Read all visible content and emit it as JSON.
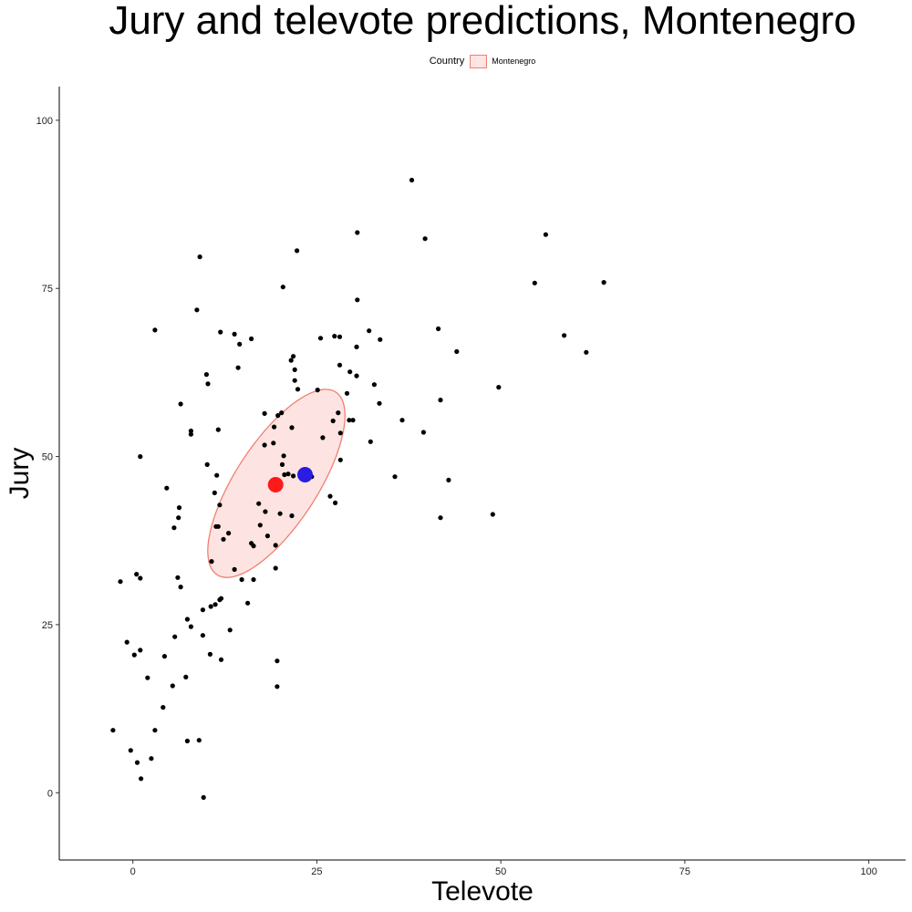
{
  "chart_data": {
    "type": "scatter",
    "title": "Jury and televote predictions, Montenegro",
    "xlabel": "Televote",
    "ylabel": "Jury",
    "xlim": [
      -10,
      105
    ],
    "ylim": [
      -10,
      105
    ],
    "xticks": [
      0,
      25,
      50,
      75,
      100
    ],
    "yticks": [
      0,
      25,
      50,
      75,
      100
    ],
    "grid": false,
    "legend": {
      "title": "Country",
      "position": "top",
      "entries": [
        "Montenegro"
      ]
    },
    "colors": {
      "points": "#000000",
      "ellipse_fill": "#fde4e2",
      "ellipse_stroke": "#f08070",
      "red_marker": "#ff1a1a",
      "blue_marker": "#2a1ce0"
    },
    "points": [
      [
        37.9,
        91.1
      ],
      [
        56.1,
        83.0
      ],
      [
        30.5,
        83.3
      ],
      [
        39.7,
        82.4
      ],
      [
        22.3,
        80.6
      ],
      [
        9.1,
        79.7
      ],
      [
        64.0,
        75.9
      ],
      [
        54.6,
        75.8
      ],
      [
        20.4,
        75.2
      ],
      [
        8.7,
        71.8
      ],
      [
        30.5,
        73.3
      ],
      [
        58.6,
        68.0
      ],
      [
        61.6,
        65.5
      ],
      [
        44.0,
        65.6
      ],
      [
        41.5,
        69.0
      ],
      [
        33.6,
        67.4
      ],
      [
        32.1,
        68.7
      ],
      [
        27.4,
        67.9
      ],
      [
        28.1,
        67.8
      ],
      [
        30.4,
        66.3
      ],
      [
        25.5,
        67.6
      ],
      [
        3.0,
        68.8
      ],
      [
        11.9,
        68.5
      ],
      [
        13.8,
        68.2
      ],
      [
        16.1,
        67.5
      ],
      [
        14.5,
        66.7
      ],
      [
        21.8,
        64.9
      ],
      [
        21.5,
        64.3
      ],
      [
        28.1,
        63.6
      ],
      [
        29.5,
        62.6
      ],
      [
        14.3,
        63.2
      ],
      [
        22.0,
        62.9
      ],
      [
        10.0,
        62.2
      ],
      [
        30.4,
        62.0
      ],
      [
        22.0,
        61.3
      ],
      [
        32.8,
        60.7
      ],
      [
        10.2,
        60.8
      ],
      [
        22.4,
        60.0
      ],
      [
        25.1,
        59.9
      ],
      [
        29.1,
        59.4
      ],
      [
        49.7,
        60.3
      ],
      [
        41.8,
        58.4
      ],
      [
        6.5,
        57.8
      ],
      [
        33.5,
        57.9
      ],
      [
        20.2,
        56.5
      ],
      [
        19.7,
        56.1
      ],
      [
        27.9,
        56.5
      ],
      [
        17.9,
        56.4
      ],
      [
        29.4,
        55.4
      ],
      [
        29.9,
        55.4
      ],
      [
        36.6,
        55.4
      ],
      [
        27.2,
        55.3
      ],
      [
        19.2,
        54.4
      ],
      [
        21.6,
        54.3
      ],
      [
        11.6,
        54.0
      ],
      [
        7.9,
        53.8
      ],
      [
        7.9,
        53.3
      ],
      [
        39.5,
        53.6
      ],
      [
        28.2,
        53.5
      ],
      [
        17.9,
        51.7
      ],
      [
        19.1,
        52.0
      ],
      [
        25.8,
        52.8
      ],
      [
        32.3,
        52.2
      ],
      [
        20.5,
        50.1
      ],
      [
        20.3,
        48.8
      ],
      [
        28.2,
        49.5
      ],
      [
        24.3,
        47.0
      ],
      [
        20.6,
        47.3
      ],
      [
        10.1,
        48.8
      ],
      [
        11.4,
        47.2
      ],
      [
        35.6,
        47.0
      ],
      [
        42.9,
        46.5
      ],
      [
        21.1,
        47.4
      ],
      [
        21.8,
        47.1
      ],
      [
        1.0,
        50.0
      ],
      [
        4.6,
        45.3
      ],
      [
        11.1,
        44.6
      ],
      [
        26.8,
        44.1
      ],
      [
        27.5,
        43.1
      ],
      [
        17.1,
        43.0
      ],
      [
        6.3,
        42.4
      ],
      [
        18.0,
        41.8
      ],
      [
        21.6,
        41.2
      ],
      [
        20.0,
        41.5
      ],
      [
        11.8,
        42.8
      ],
      [
        6.2,
        40.9
      ],
      [
        41.8,
        40.9
      ],
      [
        48.9,
        41.4
      ],
      [
        11.3,
        39.6
      ],
      [
        17.3,
        39.8
      ],
      [
        11.6,
        39.6
      ],
      [
        5.6,
        39.4
      ],
      [
        18.3,
        38.2
      ],
      [
        13.0,
        38.6
      ],
      [
        12.3,
        37.7
      ],
      [
        16.1,
        37.1
      ],
      [
        16.4,
        36.7
      ],
      [
        19.4,
        36.8
      ],
      [
        10.7,
        34.4
      ],
      [
        13.8,
        33.2
      ],
      [
        19.4,
        33.4
      ],
      [
        0.5,
        32.5
      ],
      [
        1.0,
        31.9
      ],
      [
        6.1,
        32.0
      ],
      [
        -1.7,
        31.4
      ],
      [
        14.8,
        31.7
      ],
      [
        16.4,
        31.7
      ],
      [
        6.5,
        30.6
      ],
      [
        12.0,
        28.9
      ],
      [
        11.8,
        28.7
      ],
      [
        15.6,
        28.2
      ],
      [
        11.2,
        28.0
      ],
      [
        10.6,
        27.7
      ],
      [
        9.5,
        27.2
      ],
      [
        7.4,
        25.8
      ],
      [
        7.9,
        24.7
      ],
      [
        13.2,
        24.2
      ],
      [
        5.7,
        23.2
      ],
      [
        9.5,
        23.4
      ],
      [
        -0.8,
        22.4
      ],
      [
        1.0,
        21.2
      ],
      [
        0.2,
        20.5
      ],
      [
        4.3,
        20.3
      ],
      [
        10.5,
        20.6
      ],
      [
        12.0,
        19.8
      ],
      [
        19.6,
        19.6
      ],
      [
        2.0,
        17.1
      ],
      [
        7.2,
        17.2
      ],
      [
        5.4,
        15.9
      ],
      [
        19.6,
        15.8
      ],
      [
        4.1,
        12.7
      ],
      [
        -2.7,
        9.3
      ],
      [
        3.0,
        9.3
      ],
      [
        9.0,
        7.8
      ],
      [
        7.4,
        7.7
      ],
      [
        -0.3,
        6.3
      ],
      [
        2.5,
        5.1
      ],
      [
        0.6,
        4.5
      ],
      [
        1.1,
        2.1
      ],
      [
        9.6,
        -0.7
      ]
    ],
    "ellipse": {
      "center": [
        19.5,
        46.0
      ],
      "semi_major": 16.2,
      "semi_minor": 6.1,
      "angle_deg": 57
    },
    "highlight": [
      {
        "x": 19.4,
        "y": 45.8,
        "color": "#ff1a1a"
      },
      {
        "x": 23.4,
        "y": 47.3,
        "color": "#2a1ce0"
      }
    ]
  }
}
